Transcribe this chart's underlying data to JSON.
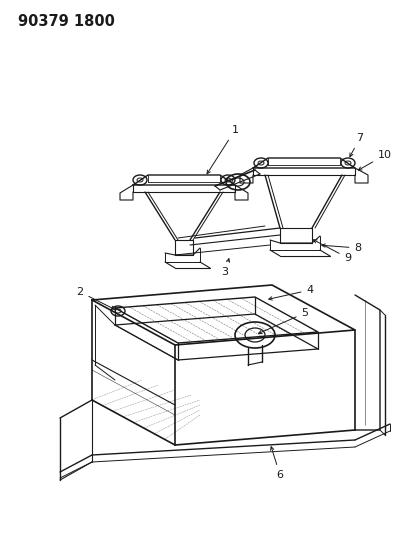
{
  "title": "90379 1800",
  "title_fontsize": 10.5,
  "title_fontweight": "bold",
  "bg_color": "#ffffff",
  "line_color": "#1a1a1a",
  "fig_width": 4.03,
  "fig_height": 5.33,
  "dpi": 100
}
